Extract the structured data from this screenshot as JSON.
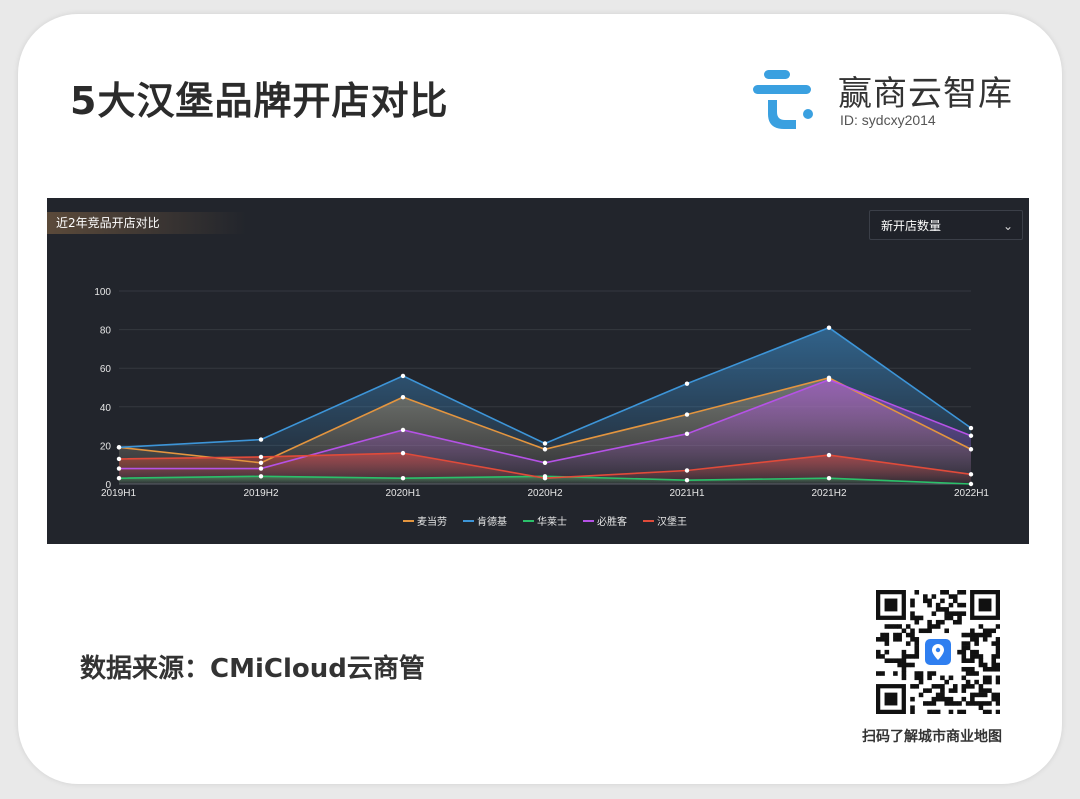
{
  "page": {
    "title": "5大汉堡品牌开店对比",
    "source": "数据来源：CMiCloud云商管",
    "qr_caption": "扫码了解城市商业地图",
    "brand_name": "赢商云智库",
    "brand_id": "ID: sydcxy2014",
    "logo_color": "#3aa0e0"
  },
  "panel": {
    "title": "近2年竞品开店对比",
    "metric_select": {
      "selected": "新开店数量"
    }
  },
  "chart_data": {
    "type": "area",
    "title": "",
    "xlabel": "",
    "ylabel": "",
    "categories": [
      "2019H1",
      "2019H2",
      "2020H1",
      "2020H2",
      "2021H1",
      "2021H2",
      "2022H1"
    ],
    "ylim": [
      0,
      100
    ],
    "yticks": [
      0,
      20,
      40,
      60,
      80,
      100
    ],
    "grid": true,
    "legend_position": "bottom",
    "series": [
      {
        "name": "麦当劳",
        "color": "#e3953f",
        "values": [
          19,
          11,
          45,
          18,
          36,
          55,
          18
        ]
      },
      {
        "name": "肯德基",
        "color": "#3d95d8",
        "values": [
          19,
          23,
          56,
          21,
          52,
          81,
          29
        ]
      },
      {
        "name": "华莱士",
        "color": "#2bc06a",
        "values": [
          3,
          4,
          3,
          4,
          2,
          3,
          0
        ]
      },
      {
        "name": "必胜客",
        "color": "#b552e6",
        "values": [
          8,
          8,
          28,
          11,
          26,
          54,
          25
        ]
      },
      {
        "name": "汉堡王",
        "color": "#e04b3a",
        "values": [
          13,
          14,
          16,
          3,
          7,
          15,
          5
        ]
      }
    ]
  }
}
